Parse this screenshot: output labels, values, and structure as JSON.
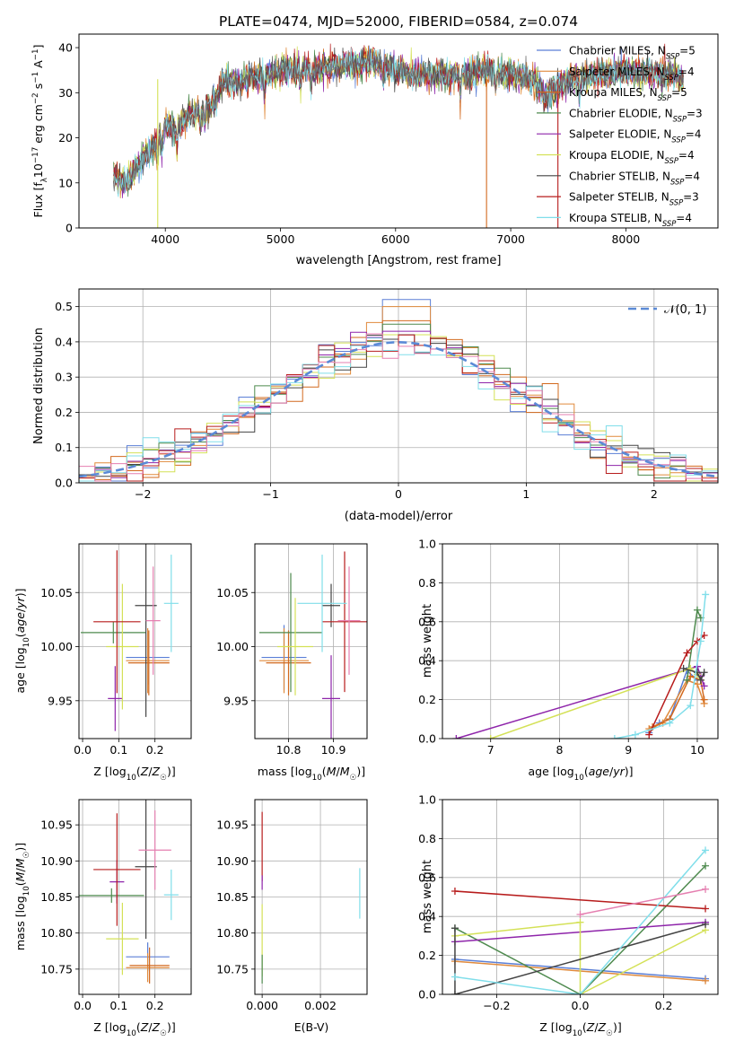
{
  "figure_title": "PLATE=0474, MJD=52000, FIBERID=0584, z=0.074",
  "colors": {
    "Chabrier MILES": "#5b7fd6",
    "Salpeter MILES": "#e08a3c",
    "Kroupa MILES": "#d2691e",
    "Chabrier ELODIE": "#4e8a4e",
    "Salpeter ELODIE": "#8e24aa",
    "Kroupa ELODIE": "#d4e157",
    "Chabrier STELIB": "#444444",
    "Salpeter STELIB": "#b71c1c",
    "Kroupa STELIB": "#80deea",
    "extra_pink": "#e57fb0",
    "gaussian": "#5b8ad6"
  },
  "chart_data": [
    {
      "type": "line",
      "title": "PLATE=0474, MJD=52000, FIBERID=0584, z=0.074",
      "xlabel": "wavelength [Angstrom, rest frame]",
      "ylabel": "Flux [f_λ 10⁻¹⁷ erg cm⁻² s⁻¹ A⁻¹]",
      "xlim": [
        3250,
        8800
      ],
      "ylim": [
        0,
        43
      ],
      "xticks": [
        4000,
        5000,
        6000,
        7000,
        8000
      ],
      "yticks": [
        0,
        10,
        20,
        30,
        40
      ],
      "grid": false,
      "legend_position": "top-right",
      "legend": [
        "Chabrier MILES, N_SSP=5",
        "Salpeter MILES, N_SSP=4",
        "Kroupa MILES, N_SSP=5",
        "Chabrier ELODIE, N_SSP=3",
        "Salpeter ELODIE, N_SSP=4",
        "Kroupa ELODIE, N_SSP=4",
        "Chabrier STELIB, N_SSP=4",
        "Salpeter STELIB, N_SSP=3",
        "Kroupa STELIB, N_SSP=4"
      ],
      "continuum_anchors": {
        "x": [
          3550,
          3650,
          3800,
          3900,
          4000,
          4100,
          4200,
          4300,
          4400,
          4500,
          4700,
          5000,
          5200,
          5500,
          5800,
          5900,
          6000,
          6200,
          6400,
          6600,
          6800,
          7000,
          7200,
          7300,
          7500,
          7800,
          8000,
          8200,
          8400,
          8500
        ],
        "y": [
          12,
          10,
          15,
          18,
          23,
          22,
          25,
          26,
          27,
          32,
          33,
          35,
          35,
          36,
          37,
          36,
          35,
          34,
          34,
          34,
          35,
          34,
          33,
          29,
          33,
          34,
          35,
          34,
          34,
          33
        ]
      },
      "dips": [
        {
          "x": 3934,
          "y": 0
        },
        {
          "x": 6790,
          "y": 0
        },
        {
          "x": 7410,
          "y": 0
        }
      ]
    },
    {
      "type": "step-histogram",
      "xlabel": "(data-model)/error",
      "ylabel": "Normed distribution",
      "xlim": [
        -2.5,
        2.5
      ],
      "ylim": [
        0,
        0.55
      ],
      "xticks": [
        -2,
        -1,
        0,
        1,
        2
      ],
      "yticks": [
        0.0,
        0.1,
        0.2,
        0.3,
        0.4,
        0.5
      ],
      "grid": true,
      "legend_position": "top-right",
      "legend": [
        "𝒩(0, 1)"
      ],
      "bin_width": 0.125,
      "reference_curve": "standard normal pdf",
      "peak_values": [
        0.52,
        0.5,
        0.46,
        0.45,
        0.43,
        0.42
      ]
    },
    {
      "type": "errorbar",
      "xlabel": "Z [log₁₀(Z/Z☉)]",
      "ylabel": "age  [log₁₀(age/yr)]",
      "xlim": [
        -0.01,
        0.3
      ],
      "ylim": [
        9.915,
        10.095
      ],
      "xticks": [
        0.0,
        0.1,
        0.2
      ],
      "yticks": [
        9.95,
        10.0,
        10.05
      ],
      "grid": true,
      "points": [
        {
          "series": "Chabrier MILES",
          "x": 0.18,
          "xerr": 0.06,
          "y": 9.99,
          "yerr": 0.025
        },
        {
          "series": "Salpeter MILES",
          "x": 0.18,
          "xerr": 0.06,
          "y": 9.987,
          "yerr": 0.03
        },
        {
          "series": "Kroupa MILES",
          "x": 0.183,
          "xerr": 0.057,
          "y": 9.985,
          "yerr": 0.03
        },
        {
          "series": "Chabrier ELODIE",
          "x": 0.085,
          "xerr": 0.09,
          "y": 10.013,
          "yerr": 0.01
        },
        {
          "series": "Salpeter ELODIE",
          "x": 0.09,
          "xerr": 0.02,
          "y": 9.952,
          "yerr": 0.03
        },
        {
          "series": "Kroupa ELODIE",
          "x": 0.11,
          "xerr": 0.045,
          "y": 10.0,
          "yerr": 0.058
        },
        {
          "series": "Chabrier STELIB",
          "x": 0.175,
          "xerr": 0.03,
          "y": 10.038,
          "yerr": 0.103
        },
        {
          "series": "Salpeter STELIB",
          "x": 0.095,
          "xerr": 0.065,
          "y": 10.023,
          "yerr": 0.066
        },
        {
          "series": "Kroupa STELIB",
          "x": 0.245,
          "xerr": 0.02,
          "y": 10.04,
          "yerr": 0.045
        },
        {
          "series": "extra_pink",
          "x": 0.195,
          "xerr": 0.02,
          "y": 10.024,
          "yerr": 0.05
        }
      ]
    },
    {
      "type": "errorbar",
      "xlabel": "mass [log₁₀(M/M☉)]",
      "xlim": [
        10.725,
        10.975
      ],
      "ylim": [
        9.915,
        10.095
      ],
      "xticks": [
        10.8,
        10.9
      ],
      "yticks": [
        9.95,
        10.0,
        10.05
      ],
      "grid": true,
      "points": [
        {
          "series": "Chabrier MILES",
          "x": 10.79,
          "xerr": 0.05,
          "y": 9.99,
          "yerr": 0.03
        },
        {
          "series": "Salpeter MILES",
          "x": 10.79,
          "xerr": 0.055,
          "y": 9.987,
          "yerr": 0.03
        },
        {
          "series": "Kroupa MILES",
          "x": 10.8,
          "xerr": 0.05,
          "y": 9.985,
          "yerr": 0.03
        },
        {
          "series": "Chabrier ELODIE",
          "x": 10.805,
          "xerr": 0.07,
          "y": 10.013,
          "yerr": 0.055
        },
        {
          "series": "Salpeter ELODIE",
          "x": 10.895,
          "xerr": 0.02,
          "y": 9.952,
          "yerr": 0.04
        },
        {
          "series": "Kroupa ELODIE",
          "x": 10.815,
          "xerr": 0.04,
          "y": 10.0,
          "yerr": 0.045
        },
        {
          "series": "Chabrier STELIB",
          "x": 10.895,
          "xerr": 0.02,
          "y": 10.038,
          "yerr": 0.02
        },
        {
          "series": "Salpeter STELIB",
          "x": 10.925,
          "xerr": 0.05,
          "y": 10.023,
          "yerr": 0.065
        },
        {
          "series": "Kroupa STELIB",
          "x": 10.875,
          "xerr": 0.055,
          "y": 10.04,
          "yerr": 0.045
        },
        {
          "series": "extra_pink",
          "x": 10.935,
          "xerr": 0.025,
          "y": 10.024,
          "yerr": 0.05
        }
      ]
    },
    {
      "type": "line",
      "xlabel": "age  [log₁₀(age/yr)]",
      "ylabel": "mass weight",
      "xlim": [
        6.3,
        10.3
      ],
      "ylim": [
        0,
        1
      ],
      "xticks": [
        7,
        8,
        9,
        10
      ],
      "yticks": [
        0.0,
        0.2,
        0.4,
        0.6,
        0.8,
        1.0
      ],
      "grid": true,
      "series": [
        {
          "name": "Chabrier MILES",
          "x": [
            9.3,
            9.45,
            9.6,
            9.85,
            10.0
          ],
          "y": [
            0.03,
            0.08,
            0.1,
            0.35,
            0.3
          ]
        },
        {
          "name": "Salpeter MILES",
          "x": [
            9.3,
            9.5,
            9.85,
            10.0,
            10.1
          ],
          "y": [
            0.05,
            0.08,
            0.3,
            0.28,
            0.18
          ]
        },
        {
          "name": "Kroupa MILES",
          "x": [
            9.35,
            9.6,
            9.9,
            10.05,
            10.1
          ],
          "y": [
            0.06,
            0.1,
            0.32,
            0.3,
            0.2
          ]
        },
        {
          "name": "Chabrier ELODIE",
          "x": [
            9.85,
            10.0,
            10.05
          ],
          "y": [
            0.3,
            0.66,
            0.62
          ]
        },
        {
          "name": "Salpeter ELODIE",
          "x": [
            6.5,
            10.0,
            10.05,
            10.1
          ],
          "y": [
            0.0,
            0.37,
            0.32,
            0.27
          ]
        },
        {
          "name": "Kroupa ELODIE",
          "x": [
            7.0,
            9.9,
            10.0,
            10.05
          ],
          "y": [
            0.0,
            0.36,
            0.33,
            0.3
          ]
        },
        {
          "name": "Chabrier STELIB",
          "x": [
            9.8,
            10.0,
            10.05,
            10.1
          ],
          "y": [
            0.36,
            0.34,
            0.3,
            0.34
          ]
        },
        {
          "name": "Salpeter STELIB",
          "x": [
            9.3,
            9.85,
            10.0,
            10.1
          ],
          "y": [
            0.02,
            0.44,
            0.5,
            0.53
          ]
        },
        {
          "name": "Kroupa STELIB",
          "x": [
            8.8,
            9.1,
            9.6,
            9.9,
            10.05,
            10.12
          ],
          "y": [
            0.0,
            0.02,
            0.08,
            0.17,
            0.5,
            0.74
          ]
        }
      ]
    },
    {
      "type": "errorbar",
      "xlabel": "Z [log₁₀(Z/Z☉)]",
      "ylabel": "mass [log₁₀(M/M☉)]",
      "xlim": [
        -0.01,
        0.3
      ],
      "ylim": [
        10.715,
        10.985
      ],
      "xticks": [
        0.0,
        0.1,
        0.2
      ],
      "yticks": [
        10.75,
        10.8,
        10.85,
        10.9,
        10.95
      ],
      "grid": true,
      "points": [
        {
          "series": "Chabrier MILES",
          "x": 0.18,
          "xerr": 0.06,
          "y": 10.767,
          "yerr": 0.02
        },
        {
          "series": "Salpeter MILES",
          "x": 0.18,
          "xerr": 0.06,
          "y": 10.752,
          "yerr": 0.02
        },
        {
          "series": "Kroupa MILES",
          "x": 0.185,
          "xerr": 0.055,
          "y": 10.755,
          "yerr": 0.025
        },
        {
          "series": "Chabrier ELODIE",
          "x": 0.08,
          "xerr": 0.09,
          "y": 10.852,
          "yerr": 0.01
        },
        {
          "series": "Salpeter ELODIE",
          "x": 0.095,
          "xerr": 0.02,
          "y": 10.871,
          "yerr": 0.03
        },
        {
          "series": "Kroupa ELODIE",
          "x": 0.11,
          "xerr": 0.045,
          "y": 10.792,
          "yerr": 0.05
        },
        {
          "series": "Chabrier STELIB",
          "x": 0.175,
          "xerr": 0.03,
          "y": 10.892,
          "yerr": 0.1
        },
        {
          "series": "Salpeter STELIB",
          "x": 0.095,
          "xerr": 0.065,
          "y": 10.888,
          "yerr": 0.078
        },
        {
          "series": "Kroupa STELIB",
          "x": 0.245,
          "xerr": 0.02,
          "y": 10.853,
          "yerr": 0.035
        },
        {
          "series": "extra_pink",
          "x": 0.2,
          "xerr": 0.045,
          "y": 10.915,
          "yerr": 0.055
        }
      ]
    },
    {
      "type": "errorbar",
      "xlabel": "E(B-V)",
      "xlim": [
        -0.00025,
        0.0036
      ],
      "ylim": [
        10.715,
        10.985
      ],
      "xticks": [
        0.0,
        0.002
      ],
      "yticks": [
        10.75,
        10.8,
        10.85,
        10.9,
        10.95
      ],
      "grid": true,
      "points": [
        {
          "series": "Salpeter STELIB",
          "x": 0.0,
          "xerr": 0.0,
          "y": 10.92,
          "yerr": 0.048
        },
        {
          "series": "Salpeter ELODIE",
          "x": 0.0,
          "xerr": 0.0,
          "y": 10.87,
          "yerr": 0.01
        },
        {
          "series": "Kroupa ELODIE",
          "x": 0.0,
          "xerr": 0.0,
          "y": 10.79,
          "yerr": 0.05
        },
        {
          "series": "Chabrier ELODIE",
          "x": 0.0,
          "xerr": 0.0,
          "y": 10.75,
          "yerr": 0.02
        },
        {
          "series": "Kroupa STELIB",
          "x": 0.00335,
          "xerr": 0.0,
          "y": 10.855,
          "yerr": 0.035
        }
      ]
    },
    {
      "type": "line",
      "xlabel": "Z [log₁₀(Z/Z☉)]",
      "ylabel": "mass weight",
      "xlim": [
        -0.33,
        0.33
      ],
      "ylim": [
        0,
        1
      ],
      "xticks": [
        -0.2,
        0.0,
        0.2
      ],
      "yticks": [
        0.0,
        0.2,
        0.4,
        0.6,
        0.8,
        1.0
      ],
      "grid": true,
      "series": [
        {
          "name": "Chabrier MILES",
          "x": [
            -0.3,
            0.3
          ],
          "y": [
            0.18,
            0.08
          ]
        },
        {
          "name": "Salpeter MILES",
          "x": [
            -0.3,
            0.3
          ],
          "y": [
            0.17,
            0.07
          ]
        },
        {
          "name": "Chabrier ELODIE",
          "x": [
            -0.3,
            0.0,
            0.3
          ],
          "y": [
            0.34,
            0.0,
            0.66
          ]
        },
        {
          "name": "Salpeter ELODIE",
          "x": [
            -0.3,
            0.3
          ],
          "y": [
            0.27,
            0.37
          ]
        },
        {
          "name": "Kroupa ELODIE",
          "x": [
            -0.3,
            0.0,
            0.0,
            0.3
          ],
          "y": [
            0.3,
            0.37,
            0.0,
            0.33
          ]
        },
        {
          "name": "Chabrier STELIB",
          "x": [
            -0.3,
            -0.3,
            0.3
          ],
          "y": [
            0.34,
            0.0,
            0.36
          ]
        },
        {
          "name": "Salpeter STELIB",
          "x": [
            -0.3,
            0.3
          ],
          "y": [
            0.53,
            0.44
          ]
        },
        {
          "name": "Kroupa STELIB",
          "x": [
            -0.3,
            0.0,
            0.3
          ],
          "y": [
            0.09,
            0.0,
            0.74
          ]
        },
        {
          "name": "extra_pink",
          "x": [
            0.0,
            0.3
          ],
          "y": [
            0.41,
            0.54
          ]
        }
      ]
    }
  ]
}
